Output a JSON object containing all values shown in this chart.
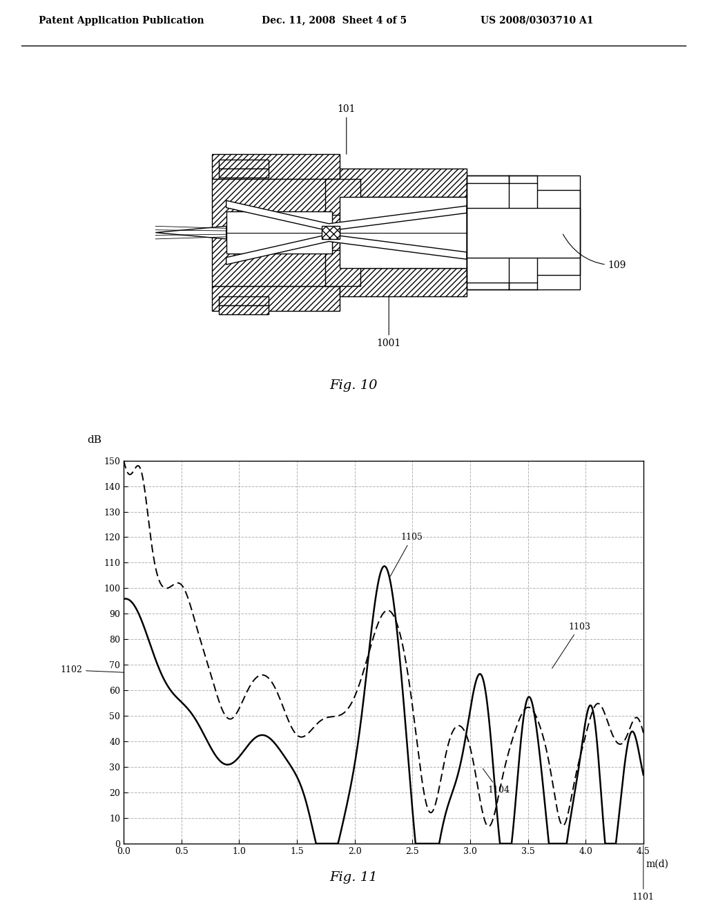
{
  "header_left": "Patent Application Publication",
  "header_mid": "Dec. 11, 2008  Sheet 4 of 5",
  "header_right": "US 2008/0303710 A1",
  "fig10_label": "Fig. 10",
  "fig11_label": "Fig. 11",
  "graph_ylabel": "dB",
  "graph_xlabel": "m(d)",
  "graph_yticks": [
    0,
    10,
    20,
    30,
    40,
    50,
    60,
    70,
    80,
    90,
    100,
    110,
    120,
    130,
    140,
    150
  ],
  "graph_xticks_vals": [
    0.0,
    0.5,
    1.0,
    1.5,
    2.0,
    2.5,
    3.0,
    3.5,
    4.0,
    4.5
  ],
  "graph_xlim": [
    0.0,
    4.5
  ],
  "graph_ylim": [
    0,
    150
  ],
  "label_1101": "1101",
  "label_1102": "1102",
  "label_1103": "1103",
  "label_1104": "1104",
  "label_1105": "1105",
  "background_color": "#ffffff",
  "grid_color": "#aaaaaa"
}
